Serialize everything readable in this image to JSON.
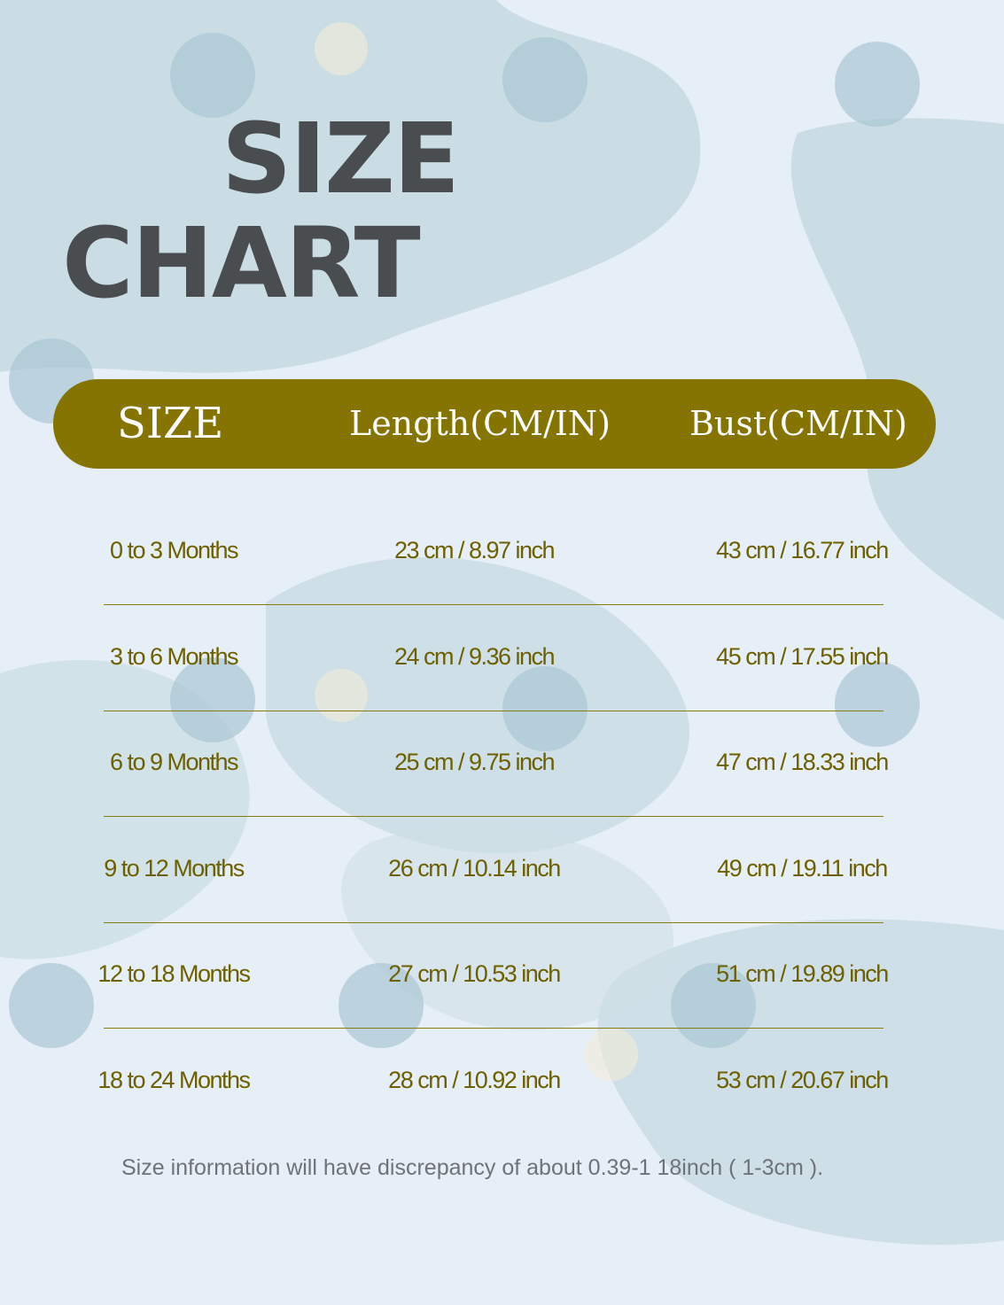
{
  "title": {
    "line1": "SIZE",
    "line2": "CHART"
  },
  "colors": {
    "header_bg": "#857400",
    "row_text": "#6e6000",
    "background": "#e6eef7"
  },
  "table": {
    "headers": [
      "SIZE",
      "Length(CM/IN)",
      "Bust(CM/IN)"
    ],
    "rows": [
      [
        "0 to 3 Months",
        "23 cm / 8.97 inch",
        "43 cm / 16.77 inch"
      ],
      [
        "3 to 6 Months",
        "24 cm / 9.36 inch",
        "45 cm / 17.55 inch"
      ],
      [
        "6 to 9 Months",
        "25 cm / 9.75 inch",
        "47 cm / 18.33 inch"
      ],
      [
        "9 to 12 Months",
        "26 cm / 10.14 inch",
        "49 cm / 19.11 inch"
      ],
      [
        "12 to 18 Months",
        "27 cm / 10.53 inch",
        "51 cm / 19.89 inch"
      ],
      [
        "18 to 24 Months",
        "28 cm / 10.92 inch",
        "53 cm / 20.67 inch"
      ]
    ]
  },
  "note": "Size information will have discrepancy of about 0.39-1 18inch ( 1-3cm )."
}
